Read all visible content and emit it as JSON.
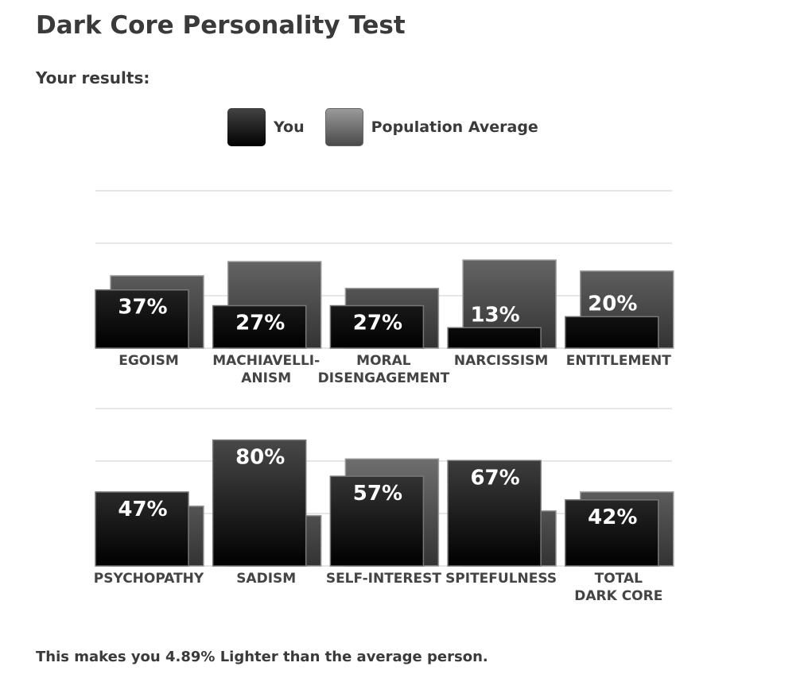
{
  "title": "Dark Core Personality Test",
  "subtitle": "Your results:",
  "footer": "This makes you 4.89% Lighter than the average person.",
  "chart_data": [
    {
      "type": "bar",
      "ylim": [
        0,
        100
      ],
      "grid": true,
      "legend_position": "top-center",
      "categories": [
        [
          "EGOISM"
        ],
        [
          "MACHIAVELLI-",
          "ANISM"
        ],
        [
          "MORAL",
          "DISENGAGEMENT"
        ],
        [
          "NARCISSISM"
        ],
        [
          "ENTITLEMENT"
        ]
      ],
      "series": [
        {
          "name": "You",
          "values": [
            37,
            27,
            27,
            13,
            20
          ],
          "labels": [
            "37%",
            "27%",
            "27%",
            "13%",
            "20%"
          ]
        },
        {
          "name": "Population Average",
          "values": [
            46,
            55,
            38,
            56,
            49
          ]
        }
      ]
    },
    {
      "type": "bar",
      "ylim": [
        0,
        100
      ],
      "grid": true,
      "categories": [
        [
          "PSYCHOPATHY"
        ],
        [
          "SADISM"
        ],
        [
          "SELF-INTEREST"
        ],
        [
          "SPITEFULNESS"
        ],
        [
          "TOTAL",
          "DARK CORE"
        ]
      ],
      "series": [
        {
          "name": "You",
          "values": [
            47,
            80,
            57,
            67,
            42
          ],
          "labels": [
            "47%",
            "80%",
            "57%",
            "67%",
            "42%"
          ]
        },
        {
          "name": "Population Average",
          "values": [
            38,
            32,
            68,
            35,
            47
          ]
        }
      ]
    }
  ],
  "legend": {
    "you": "You",
    "population": "Population Average"
  },
  "colors": {
    "you_top": "#5a5a5a",
    "you_bottom": "#000000",
    "pop_top": "#8a8a8a",
    "pop_bottom": "#333333"
  }
}
